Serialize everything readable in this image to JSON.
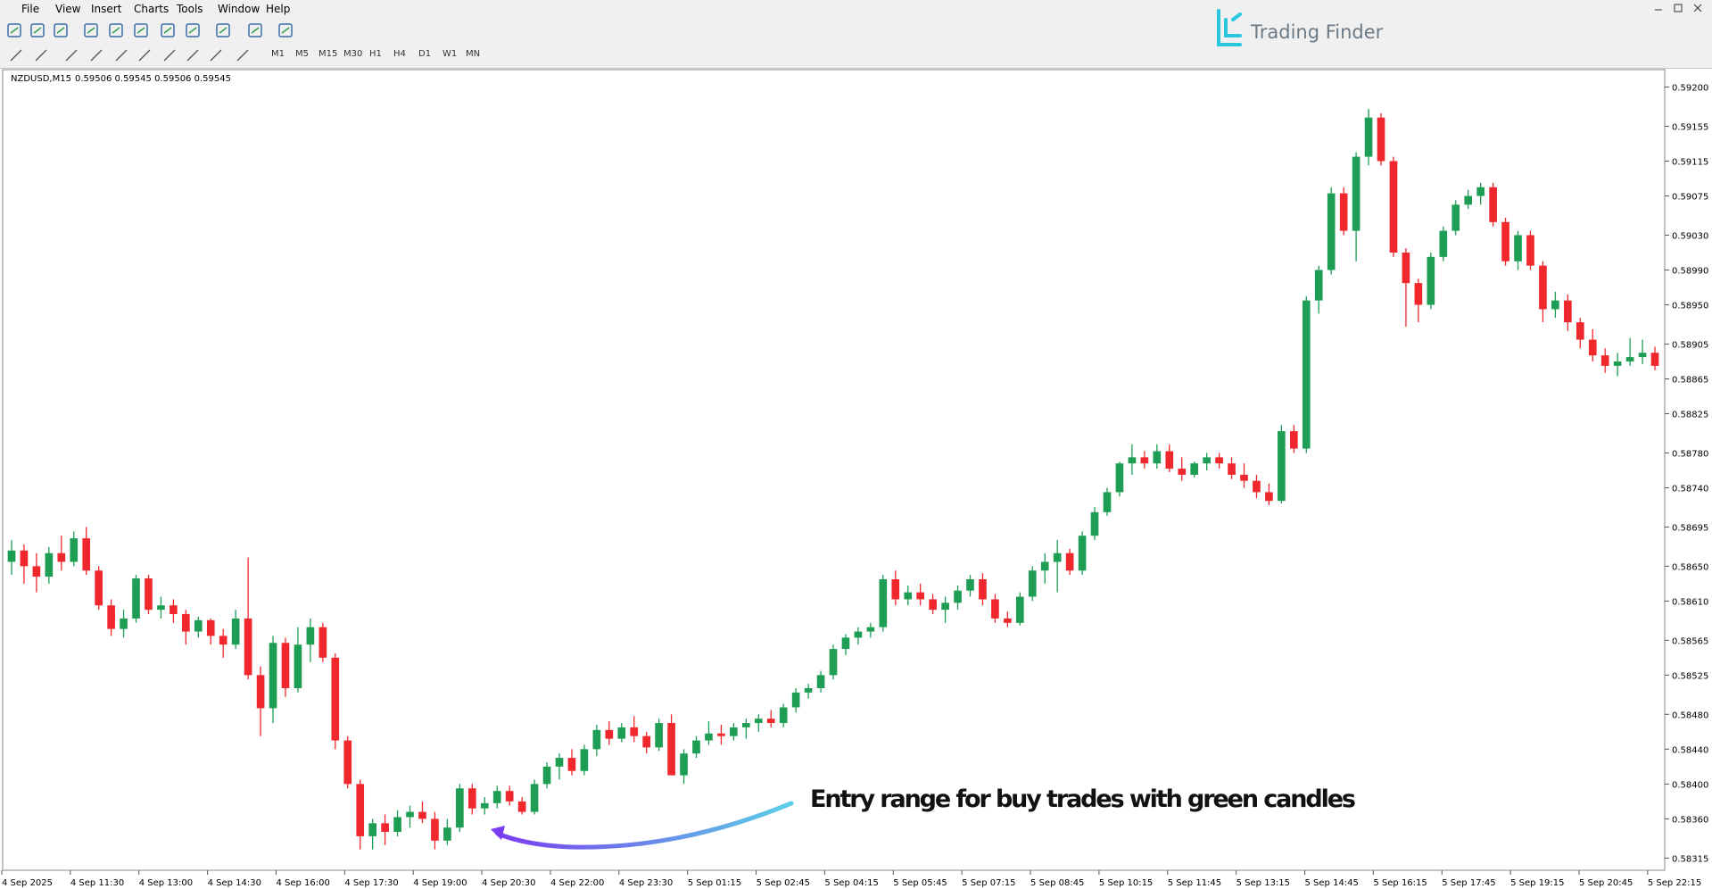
{
  "menu": [
    "File",
    "View",
    "Insert",
    "Charts",
    "Tools",
    "Window",
    "Help"
  ],
  "timeframes": [
    "M1",
    "M5",
    "M15",
    "M30",
    "H1",
    "H4",
    "D1",
    "W1",
    "MN"
  ],
  "logo": "Trading Finder",
  "chart_data": {
    "type": "candlestick",
    "symbol": "NZDUSD,M15",
    "quote": "0.59506 0.59545 0.59506 0.59545",
    "annotation": "Entry range for buy trades with green candles",
    "bull_color": "#1e9e54",
    "bear_color": "#f0282d",
    "ylim": [
      0.58301,
      0.5922
    ],
    "yticks": [
      {
        "value": 0.592,
        "label": "0.59200"
      },
      {
        "value": 0.59155,
        "label": "0.59155"
      },
      {
        "value": 0.59115,
        "label": "0.59115"
      },
      {
        "value": 0.59075,
        "label": "0.59075"
      },
      {
        "value": 0.5903,
        "label": "0.59030"
      },
      {
        "value": 0.5899,
        "label": "0.58990"
      },
      {
        "value": 0.5895,
        "label": "0.58950"
      },
      {
        "value": 0.58905,
        "label": "0.58905"
      },
      {
        "value": 0.58865,
        "label": "0.58865"
      },
      {
        "value": 0.58825,
        "label": "0.58825"
      },
      {
        "value": 0.5878,
        "label": "0.58780"
      },
      {
        "value": 0.5874,
        "label": "0.58740"
      },
      {
        "value": 0.58695,
        "label": "0.58695"
      },
      {
        "value": 0.5865,
        "label": "0.58650"
      },
      {
        "value": 0.5861,
        "label": "0.58610"
      },
      {
        "value": 0.58565,
        "label": "0.58565"
      },
      {
        "value": 0.58525,
        "label": "0.58525"
      },
      {
        "value": 0.5848,
        "label": "0.58480"
      },
      {
        "value": 0.5844,
        "label": "0.58440"
      },
      {
        "value": 0.584,
        "label": "0.58400"
      },
      {
        "value": 0.5836,
        "label": "0.58360"
      },
      {
        "value": 0.58315,
        "label": "0.58315"
      }
    ],
    "x_labels": [
      "4 Sep 2025",
      "4 Sep 11:30",
      "4 Sep 13:00",
      "4 Sep 14:30",
      "4 Sep 16:00",
      "4 Sep 17:30",
      "4 Sep 19:00",
      "4 Sep 20:30",
      "4 Sep 22:00",
      "4 Sep 23:30",
      "5 Sep 01:15",
      "5 Sep 02:45",
      "5 Sep 04:15",
      "5 Sep 05:45",
      "5 Sep 07:15",
      "5 Sep 08:45",
      "5 Sep 10:15",
      "5 Sep 11:45",
      "5 Sep 13:15",
      "5 Sep 14:45",
      "5 Sep 16:15",
      "5 Sep 17:45",
      "5 Sep 19:15",
      "5 Sep 20:45",
      "5 Sep 22:15"
    ],
    "ohlc": [
      [
        0.58655,
        0.5868,
        0.5864,
        0.58668
      ],
      [
        0.58668,
        0.58675,
        0.5863,
        0.5865
      ],
      [
        0.5865,
        0.58665,
        0.5862,
        0.58638
      ],
      [
        0.58638,
        0.58672,
        0.5863,
        0.58665
      ],
      [
        0.58665,
        0.58685,
        0.58645,
        0.58655
      ],
      [
        0.58655,
        0.5869,
        0.5865,
        0.58682
      ],
      [
        0.58682,
        0.58695,
        0.5864,
        0.58645
      ],
      [
        0.58645,
        0.5865,
        0.586,
        0.58605
      ],
      [
        0.58605,
        0.58612,
        0.5857,
        0.58578
      ],
      [
        0.58578,
        0.586,
        0.58568,
        0.5859
      ],
      [
        0.5859,
        0.5864,
        0.58585,
        0.58636
      ],
      [
        0.58636,
        0.5864,
        0.58595,
        0.586
      ],
      [
        0.586,
        0.58615,
        0.5859,
        0.58605
      ],
      [
        0.58605,
        0.58612,
        0.58585,
        0.58595
      ],
      [
        0.58595,
        0.586,
        0.5856,
        0.58575
      ],
      [
        0.58575,
        0.58592,
        0.58568,
        0.58588
      ],
      [
        0.58588,
        0.5859,
        0.5856,
        0.5857
      ],
      [
        0.5857,
        0.58578,
        0.58545,
        0.5856
      ],
      [
        0.5856,
        0.586,
        0.58555,
        0.5859
      ],
      [
        0.5859,
        0.5866,
        0.5852,
        0.58525
      ],
      [
        0.58525,
        0.58535,
        0.58455,
        0.58487
      ],
      [
        0.58487,
        0.5857,
        0.5847,
        0.58562
      ],
      [
        0.58562,
        0.58568,
        0.585,
        0.5851
      ],
      [
        0.5851,
        0.5858,
        0.58505,
        0.5856
      ],
      [
        0.5856,
        0.5859,
        0.5854,
        0.5858
      ],
      [
        0.5858,
        0.58585,
        0.5854,
        0.58545
      ],
      [
        0.58545,
        0.5855,
        0.5844,
        0.5845
      ],
      [
        0.5845,
        0.58455,
        0.58395,
        0.584
      ],
      [
        0.584,
        0.58405,
        0.58325,
        0.5834
      ],
      [
        0.5834,
        0.5836,
        0.58325,
        0.58355
      ],
      [
        0.58355,
        0.58365,
        0.5833,
        0.58345
      ],
      [
        0.58345,
        0.5837,
        0.5834,
        0.58362
      ],
      [
        0.58362,
        0.58375,
        0.5835,
        0.58368
      ],
      [
        0.58368,
        0.5838,
        0.58355,
        0.5836
      ],
      [
        0.5836,
        0.58368,
        0.58325,
        0.58335
      ],
      [
        0.58335,
        0.5836,
        0.5833,
        0.5835
      ],
      [
        0.5835,
        0.584,
        0.58345,
        0.58395
      ],
      [
        0.58395,
        0.584,
        0.58365,
        0.58372
      ],
      [
        0.58372,
        0.58385,
        0.58365,
        0.58378
      ],
      [
        0.58378,
        0.58398,
        0.58372,
        0.58392
      ],
      [
        0.58392,
        0.58398,
        0.58375,
        0.5838
      ],
      [
        0.5838,
        0.58385,
        0.58365,
        0.58368
      ],
      [
        0.58368,
        0.58405,
        0.58365,
        0.584
      ],
      [
        0.584,
        0.58425,
        0.58395,
        0.5842
      ],
      [
        0.5842,
        0.58435,
        0.58405,
        0.5843
      ],
      [
        0.5843,
        0.5844,
        0.5841,
        0.58415
      ],
      [
        0.58415,
        0.58445,
        0.5841,
        0.5844
      ],
      [
        0.5844,
        0.58468,
        0.58432,
        0.58462
      ],
      [
        0.58462,
        0.58472,
        0.58445,
        0.58452
      ],
      [
        0.58452,
        0.5847,
        0.58448,
        0.58465
      ],
      [
        0.58465,
        0.58478,
        0.58448,
        0.58455
      ],
      [
        0.58455,
        0.5846,
        0.58435,
        0.58442
      ],
      [
        0.58442,
        0.58475,
        0.58438,
        0.5847
      ],
      [
        0.5847,
        0.5848,
        0.5841,
        0.5841
      ],
      [
        0.5841,
        0.5844,
        0.584,
        0.58435
      ],
      [
        0.58435,
        0.58455,
        0.5843,
        0.5845
      ],
      [
        0.5845,
        0.58472,
        0.58445,
        0.58458
      ],
      [
        0.58458,
        0.58468,
        0.58445,
        0.58455
      ],
      [
        0.58455,
        0.5847,
        0.5845,
        0.58465
      ],
      [
        0.58465,
        0.58475,
        0.58452,
        0.5847
      ],
      [
        0.5847,
        0.5848,
        0.5846,
        0.58475
      ],
      [
        0.58475,
        0.58485,
        0.58465,
        0.5847
      ],
      [
        0.5847,
        0.58492,
        0.58465,
        0.58488
      ],
      [
        0.58488,
        0.5851,
        0.58482,
        0.58505
      ],
      [
        0.58505,
        0.58515,
        0.58498,
        0.5851
      ],
      [
        0.5851,
        0.5853,
        0.58505,
        0.58525
      ],
      [
        0.58525,
        0.5856,
        0.5852,
        0.58555
      ],
      [
        0.58555,
        0.58572,
        0.58548,
        0.58568
      ],
      [
        0.58568,
        0.5858,
        0.5856,
        0.58575
      ],
      [
        0.58575,
        0.58585,
        0.58568,
        0.5858
      ],
      [
        0.5858,
        0.5864,
        0.58575,
        0.58635
      ],
      [
        0.58635,
        0.58645,
        0.58605,
        0.58612
      ],
      [
        0.58612,
        0.58628,
        0.58605,
        0.5862
      ],
      [
        0.5862,
        0.5863,
        0.58605,
        0.58612
      ],
      [
        0.58612,
        0.58618,
        0.58595,
        0.586
      ],
      [
        0.586,
        0.58615,
        0.58585,
        0.58608
      ],
      [
        0.58608,
        0.58628,
        0.586,
        0.58622
      ],
      [
        0.58622,
        0.5864,
        0.58615,
        0.58635
      ],
      [
        0.58635,
        0.58642,
        0.58605,
        0.58612
      ],
      [
        0.58612,
        0.58618,
        0.58585,
        0.5859
      ],
      [
        0.5859,
        0.58598,
        0.5858,
        0.58585
      ],
      [
        0.58585,
        0.5862,
        0.58582,
        0.58615
      ],
      [
        0.58615,
        0.5865,
        0.5861,
        0.58645
      ],
      [
        0.58645,
        0.58665,
        0.5863,
        0.58655
      ],
      [
        0.58655,
        0.5868,
        0.5862,
        0.58665
      ],
      [
        0.58665,
        0.5867,
        0.5864,
        0.58645
      ],
      [
        0.58645,
        0.5869,
        0.5864,
        0.58685
      ],
      [
        0.58685,
        0.58718,
        0.5868,
        0.58712
      ],
      [
        0.58712,
        0.5874,
        0.58708,
        0.58735
      ],
      [
        0.58735,
        0.5877,
        0.5873,
        0.58768
      ],
      [
        0.58768,
        0.5879,
        0.58755,
        0.58775
      ],
      [
        0.58775,
        0.58782,
        0.58762,
        0.58768
      ],
      [
        0.58768,
        0.5879,
        0.58762,
        0.58782
      ],
      [
        0.58782,
        0.5879,
        0.58758,
        0.58762
      ],
      [
        0.58762,
        0.58775,
        0.58748,
        0.58755
      ],
      [
        0.58755,
        0.5877,
        0.58752,
        0.58768
      ],
      [
        0.58768,
        0.5878,
        0.5876,
        0.58775
      ],
      [
        0.58775,
        0.5878,
        0.58762,
        0.58768
      ],
      [
        0.58768,
        0.58775,
        0.5875,
        0.58755
      ],
      [
        0.58755,
        0.58768,
        0.5874,
        0.58748
      ],
      [
        0.58748,
        0.58755,
        0.58728,
        0.58735
      ],
      [
        0.58735,
        0.58745,
        0.5872,
        0.58725
      ],
      [
        0.58725,
        0.58812,
        0.58722,
        0.58805
      ],
      [
        0.58805,
        0.58812,
        0.5878,
        0.58785
      ],
      [
        0.58785,
        0.5896,
        0.5878,
        0.58955
      ],
      [
        0.58955,
        0.58995,
        0.5894,
        0.5899
      ],
      [
        0.5899,
        0.59085,
        0.58985,
        0.59078
      ],
      [
        0.59078,
        0.59085,
        0.5903,
        0.59035
      ],
      [
        0.59035,
        0.59125,
        0.59,
        0.5912
      ],
      [
        0.5912,
        0.59175,
        0.5911,
        0.59165
      ],
      [
        0.59165,
        0.5917,
        0.5911,
        0.59115
      ],
      [
        0.59115,
        0.5912,
        0.59005,
        0.5901
      ],
      [
        0.5901,
        0.59015,
        0.58925,
        0.58975
      ],
      [
        0.58975,
        0.5898,
        0.5893,
        0.5895
      ],
      [
        0.5895,
        0.5901,
        0.58945,
        0.59005
      ],
      [
        0.59005,
        0.5904,
        0.59,
        0.59035
      ],
      [
        0.59035,
        0.5907,
        0.5903,
        0.59065
      ],
      [
        0.59065,
        0.59082,
        0.5906,
        0.59075
      ],
      [
        0.59075,
        0.5909,
        0.59065,
        0.59085
      ],
      [
        0.59085,
        0.5909,
        0.5904,
        0.59045
      ],
      [
        0.59045,
        0.5905,
        0.58995,
        0.59
      ],
      [
        0.59,
        0.59035,
        0.5899,
        0.5903
      ],
      [
        0.5903,
        0.59035,
        0.5899,
        0.58995
      ],
      [
        0.58995,
        0.59,
        0.5893,
        0.58945
      ],
      [
        0.58945,
        0.58965,
        0.58935,
        0.58955
      ],
      [
        0.58955,
        0.58962,
        0.5892,
        0.5893
      ],
      [
        0.5893,
        0.58935,
        0.589,
        0.5891
      ],
      [
        0.5891,
        0.58922,
        0.58885,
        0.58892
      ],
      [
        0.58892,
        0.589,
        0.58872,
        0.5888
      ],
      [
        0.5888,
        0.58895,
        0.58868,
        0.58885
      ],
      [
        0.58885,
        0.58912,
        0.5888,
        0.5889
      ],
      [
        0.5889,
        0.5891,
        0.58882,
        0.58895
      ],
      [
        0.58895,
        0.58902,
        0.58875,
        0.5888
      ]
    ]
  }
}
